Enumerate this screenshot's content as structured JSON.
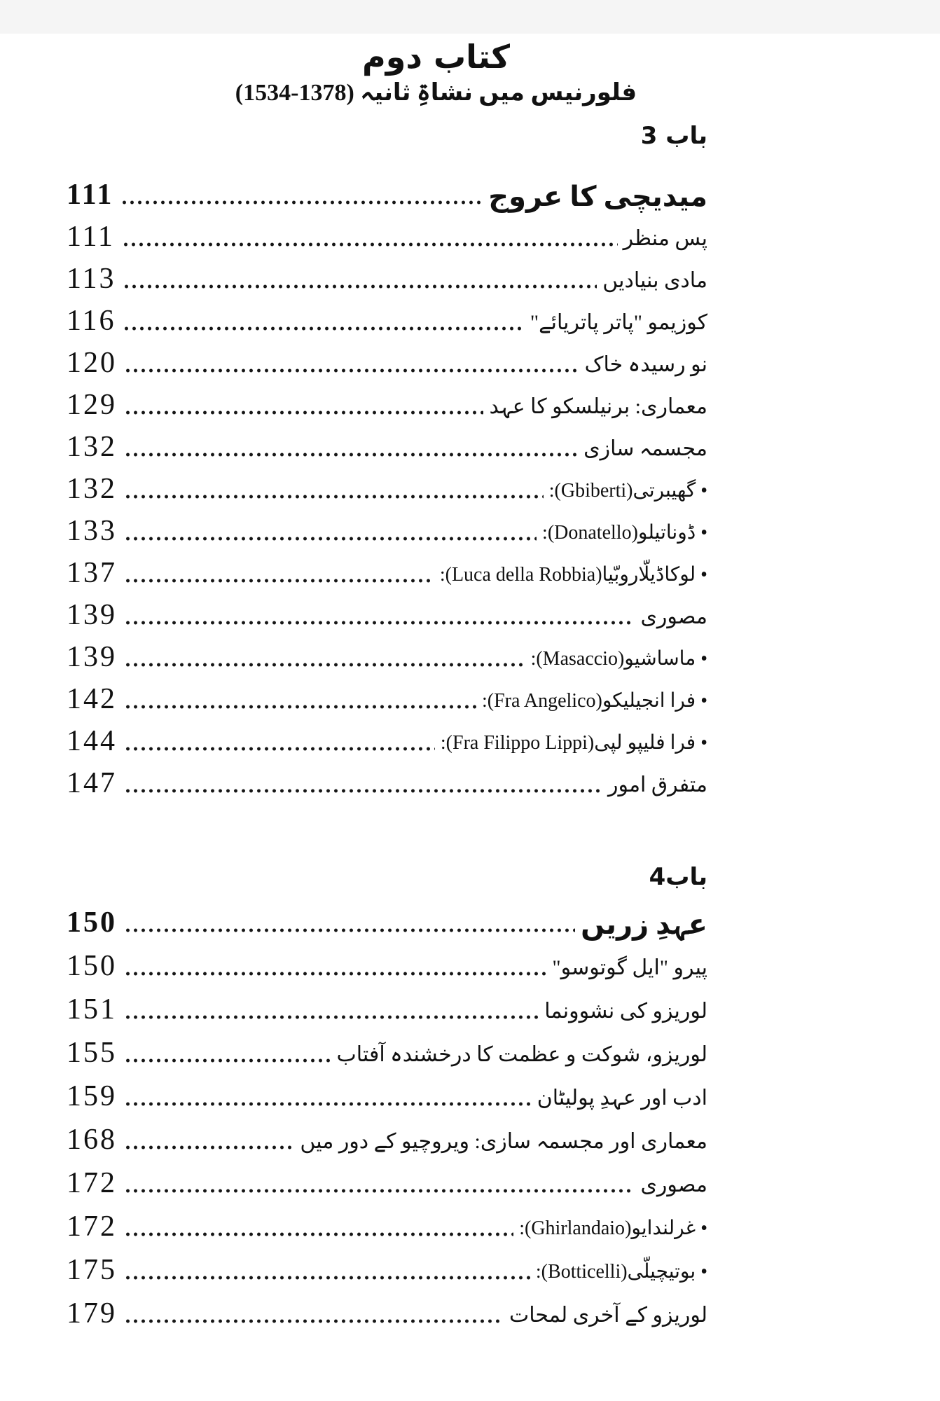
{
  "colors": {
    "ink": "#111111",
    "paper": "#ffffff"
  },
  "header": {
    "book_title": "کتاب دوم",
    "subtitle": "فلورنیس میں نشاۃِ ثانیہ (1378-1534)"
  },
  "chapters": [
    {
      "heading": "باب 3",
      "entries": [
        {
          "label": "میدیچی کا عروج",
          "page": "111",
          "bold": true
        },
        {
          "label": "پس منظر",
          "page": "111"
        },
        {
          "label": "مادی بنیادیں",
          "page": "113"
        },
        {
          "label": "کوزیمو \"پاتر پاتریائے\"",
          "page": "116"
        },
        {
          "label": "نو رسیدہ خاک",
          "page": "120"
        },
        {
          "label": "معماری: برنیلسکو کا عہد",
          "page": "129"
        },
        {
          "label": "مجسمہ سازی",
          "page": "132"
        },
        {
          "label": "• گھیبرتی(Gbiberti):",
          "page": "132",
          "bullet": true
        },
        {
          "label": "• ڈوناتیلو(Donatello):",
          "page": "133",
          "bullet": true
        },
        {
          "label": "• لوکاڈیلّاروبّیا(Luca della Robbia):",
          "page": "137",
          "bullet": true
        },
        {
          "label": "مصوری",
          "page": "139"
        },
        {
          "label": "• ماساشیو(Masaccio):",
          "page": "139",
          "bullet": true
        },
        {
          "label": "• فرا انجیلیکو(Fra Angelico):",
          "page": "142",
          "bullet": true
        },
        {
          "label": "• فرا فلیپو لپی(Fra Filippo Lippi):",
          "page": "144",
          "bullet": true
        },
        {
          "label": "متفرق امور",
          "page": "147"
        }
      ]
    },
    {
      "heading": "باب4",
      "entries": [
        {
          "label": "عہدِ زریں",
          "page": "150",
          "bold": true
        },
        {
          "label": "پیرو \"ایل گوتوسو\"",
          "page": "150"
        },
        {
          "label": "لوریزو کی نشوونما",
          "page": "151"
        },
        {
          "label": "لوریزو، شوکت و عظمت کا درخشندہ آفتاب",
          "page": "155"
        },
        {
          "label": "ادب اور عہدِ پولیٹان",
          "page": "159"
        },
        {
          "label": "معماری اور مجسمہ سازی: ویروچیو کے دور میں",
          "page": "168"
        },
        {
          "label": "مصوری",
          "page": "172"
        },
        {
          "label": "• غرلندایو(Ghirlandaio):",
          "page": "172",
          "bullet": true
        },
        {
          "label": "• بوتیچیلّی(Botticelli):",
          "page": "175",
          "bullet": true
        },
        {
          "label": "لوریزو کے آخری لمحات",
          "page": "179"
        }
      ]
    }
  ]
}
